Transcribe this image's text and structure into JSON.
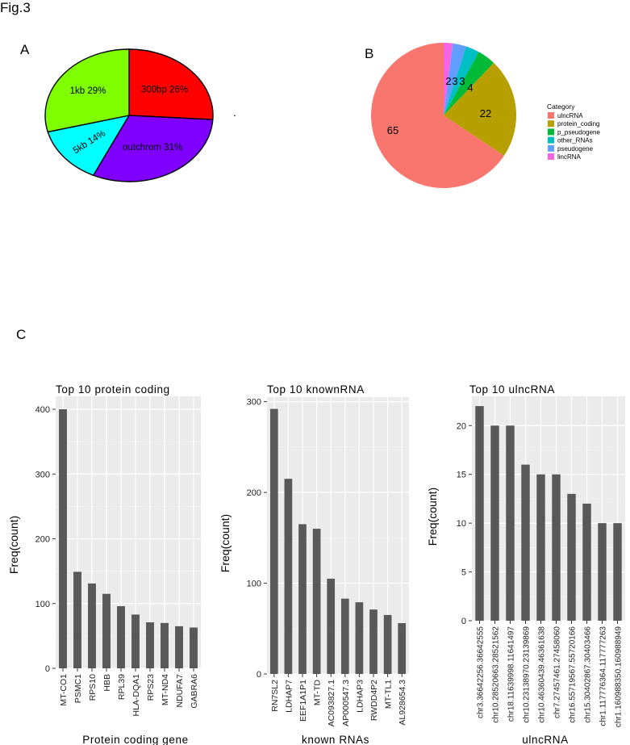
{
  "figure_title": "Fig.3",
  "stray_mark": ".",
  "chart_data": [
    {
      "panel_label": "A",
      "type": "pie",
      "labels": [
        "300bp",
        "outchrom",
        "5kb",
        "1kb"
      ],
      "values": [
        26,
        31,
        14,
        29
      ],
      "slice_labels": [
        "300bp 26%",
        "outchrom 31%",
        "5kb 14%",
        "1kb 29%"
      ],
      "colors": [
        "#ff0000",
        "#7f00ff",
        "#00ffff",
        "#80ff00"
      ]
    },
    {
      "panel_label": "B",
      "type": "pie",
      "legend_title": "Category",
      "legend_position": "right",
      "labels": [
        "ulncRNA",
        "protein_coding",
        "p_pseudogene",
        "other_RNAs",
        "pseudogene",
        "lincRNA"
      ],
      "values": [
        65,
        22,
        4,
        3,
        3,
        2
      ],
      "slice_labels": [
        "65",
        "22",
        "4",
        "3",
        "3",
        "2"
      ],
      "colors": [
        "#f8766d",
        "#b79f00",
        "#00ba38",
        "#00bfc4",
        "#619cff",
        "#f564e3"
      ]
    },
    {
      "panel_label": "C",
      "type": "bar",
      "title": "Top 10 protein coding",
      "xlabel": "Protein coding gene",
      "ylabel": "Freq(count)",
      "ylim": [
        0,
        420
      ],
      "yticks": [
        0,
        100,
        200,
        300,
        400
      ],
      "categories": [
        "MT-CO1",
        "PSMC1",
        "RPS10",
        "HBB",
        "RPL39",
        "HLA-DQA1",
        "RPS23",
        "MT-ND4",
        "NDUFA7",
        "GABRA6"
      ],
      "values": [
        400,
        149,
        131,
        115,
        96,
        83,
        71,
        70,
        65,
        63
      ],
      "bar_color": "#595959",
      "panel_bg": "#ebebeb"
    },
    {
      "type": "bar",
      "title": "Top 10 knownRNA",
      "xlabel": "known RNAs",
      "ylabel": "Freq(count)",
      "ylim": [
        0,
        305
      ],
      "yticks": [
        0,
        100,
        200,
        300
      ],
      "categories": [
        "RN7SL2",
        "LDHAP7",
        "EEF1A1P1",
        "MT-TD",
        "AC093827.1",
        "AP000547.3",
        "LDHAP3",
        "RWDD4P2",
        "MT-TL1",
        "AL928654.3"
      ],
      "values": [
        292,
        215,
        165,
        160,
        105,
        83,
        79,
        71,
        65,
        56
      ],
      "bar_color": "#595959",
      "panel_bg": "#ebebeb"
    },
    {
      "type": "bar",
      "title": "Top 10 ulncRNA",
      "xlabel": "ulncRNA",
      "ylabel": "Freq(count)",
      "ylim": [
        0,
        23
      ],
      "yticks": [
        0,
        5,
        10,
        15,
        20
      ],
      "categories": [
        "chr3.36642256.36642555",
        "chr10.28520663.28521562",
        "chr18.11639998.11641497",
        "chr10.23138970.23139869",
        "chr10.46360439.46361638",
        "chr7.27457461.27458060",
        "chr16.55719567.55720166",
        "chr15.30402867.30403466",
        "chr1.117776364.117777263",
        "chr1.160988350.160988949"
      ],
      "values": [
        22,
        20,
        20,
        16,
        15,
        15,
        13,
        12,
        10,
        10
      ],
      "bar_color": "#595959",
      "panel_bg": "#ebebeb"
    }
  ]
}
